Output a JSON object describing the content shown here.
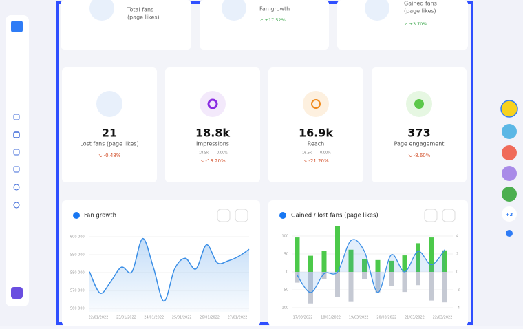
{
  "top_cards": [
    {
      "label": [
        "Total fans",
        "(page likes)"
      ]
    },
    {
      "label": [
        "Fan growth"
      ],
      "change": "↗ +17.52%"
    },
    {
      "label": [
        "Gained fans",
        "(page likes)"
      ],
      "change": "↗ +3.70%"
    }
  ],
  "stat_cards": [
    {
      "value": "21",
      "label": "Lost fans (page likes)",
      "change": "↘ -0.48%"
    },
    {
      "value": "18.8k",
      "label": "Impressions",
      "details": [
        "18.5k",
        "0.00%"
      ],
      "change": "↘ -13.20%"
    },
    {
      "value": "16.9k",
      "label": "Reach",
      "details": [
        "16.5k",
        "0.00%"
      ],
      "change": "↘ -21.20%"
    },
    {
      "value": "373",
      "label": "Page engagement",
      "change": "↘ -8.60%"
    }
  ],
  "fan_growth_chart": {
    "type": "line",
    "title": "Fan growth",
    "color": "#3a8ee6",
    "ylim": [
      558000,
      602000
    ],
    "yticks": [
      {
        "value": 600000,
        "label": "600 000"
      },
      {
        "value": 590000,
        "label": "590 000"
      },
      {
        "value": 580000,
        "label": "580 000"
      },
      {
        "value": 570000,
        "label": "570 000"
      },
      {
        "value": 560000,
        "label": "560 000"
      }
    ],
    "x_labels": [
      "22/01/2022",
      "23/01/2022",
      "24/01/2022",
      "25/01/2022",
      "26/01/2022",
      "27/01/2022"
    ],
    "values": [
      580500,
      568500,
      575000,
      583000,
      580500,
      599000,
      583000,
      564000,
      582000,
      588000,
      582000,
      595500,
      585500,
      586500,
      589000,
      593000
    ]
  },
  "gained_lost_chart": {
    "type": "bar",
    "title": "Gained / lost fans (page likes)",
    "ylim": [
      -105,
      130
    ],
    "yticks": [
      100,
      50,
      0,
      -50,
      -100
    ],
    "y2lim": [
      -4.2,
      5.2
    ],
    "y2ticks": [
      4,
      2,
      0,
      -2,
      -4
    ],
    "x_labels": [
      "17/03/2022",
      "18/03/2022",
      "19/03/2022",
      "20/03/2022",
      "21/03/2022",
      "22/03/2022"
    ],
    "gained_values": [
      96,
      45,
      58,
      127,
      62,
      35,
      33,
      31,
      46,
      80,
      96,
      60
    ],
    "gained_color": "#4cc94a",
    "lost_values": [
      -30,
      -88,
      -20,
      -70,
      -84,
      -20,
      -57,
      -40,
      -56,
      -37,
      -80,
      -85
    ],
    "lost_color": "#c5c9d3",
    "line_values": [
      -0.4,
      -2.3,
      -0.2,
      0,
      3.5,
      2.3,
      -2.3,
      1.9,
      0,
      2.3,
      0.8,
      2.5
    ],
    "line_color": "#3a8ee6"
  },
  "sidebar": {
    "more_accounts": "+3"
  }
}
